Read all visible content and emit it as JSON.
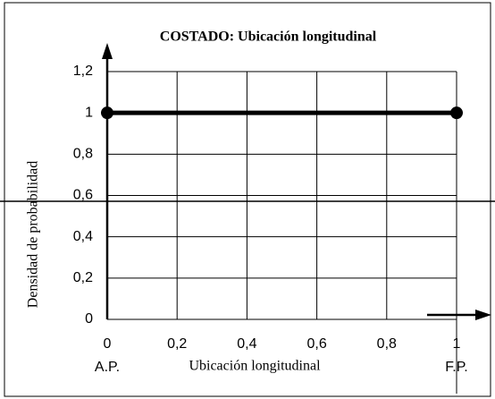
{
  "chart_data": {
    "type": "line",
    "title": "COSTADO:  Ubicación longitudinal",
    "xlabel": "Ubicación longitudinal",
    "ylabel": "Densidad de probabilidad",
    "x": [
      0,
      1
    ],
    "series": [
      {
        "color": "#000000",
        "values": [
          1,
          1
        ]
      }
    ],
    "xlim": [
      0,
      1
    ],
    "ylim": [
      0,
      1.2
    ],
    "xticks": [
      0,
      {
        "value": 0.2,
        "label": "0,2"
      },
      {
        "value": 0.4,
        "label": "0,4"
      },
      {
        "value": 0.6,
        "label": "0,6"
      },
      {
        "value": 0.8,
        "label": "0,8"
      },
      1
    ],
    "yticks": [
      0,
      {
        "value": 0.2,
        "label": "0,2"
      },
      {
        "value": 0.4,
        "label": "0,4"
      },
      {
        "value": 0.6,
        "label": "0,6"
      },
      {
        "value": 0.8,
        "label": "0,8"
      },
      1,
      {
        "value": 1.2,
        "label": "1,2"
      }
    ],
    "x_end_labels": [
      "A.P.",
      "F.P."
    ],
    "grid": true
  }
}
